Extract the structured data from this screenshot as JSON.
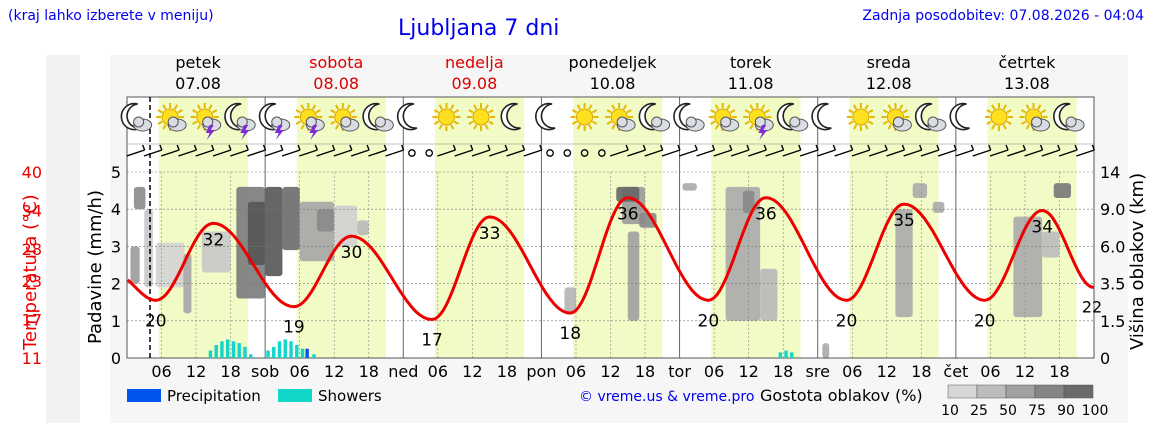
{
  "header": {
    "left_note": "(kraj lahko izberete v meniju)",
    "title": "Ljubljana 7 dni",
    "updated": "Zadnja posodobitev: 07.08.2026 - 04:04"
  },
  "days": [
    {
      "name": "petek",
      "date": "07.08",
      "weekend": false,
      "abbr": "",
      "icons": [
        "moon-cloud",
        "sun-cloud",
        "sun-storm",
        "moon-storm"
      ]
    },
    {
      "name": "sobota",
      "date": "08.08",
      "weekend": true,
      "abbr": "sob",
      "icons": [
        "moon-storm",
        "sun-storm",
        "sun-cloud",
        "moon-cloud"
      ]
    },
    {
      "name": "nedelja",
      "date": "09.08",
      "weekend": true,
      "abbr": "ned",
      "icons": [
        "moon",
        "sun",
        "sun",
        "moon"
      ]
    },
    {
      "name": "ponedeljek",
      "date": "10.08",
      "weekend": false,
      "abbr": "pon",
      "icons": [
        "moon",
        "sun",
        "sun-cloud",
        "moon-cloud"
      ]
    },
    {
      "name": "torek",
      "date": "11.08",
      "weekend": false,
      "abbr": "tor",
      "icons": [
        "moon-cloud",
        "sun-cloud",
        "sun-storm",
        "moon-cloud"
      ]
    },
    {
      "name": "sreda",
      "date": "12.08",
      "weekend": false,
      "abbr": "sre",
      "icons": [
        "moon",
        "sun",
        "sun-cloud",
        "moon-cloud"
      ]
    },
    {
      "name": "četrtek",
      "date": "13.08",
      "weekend": false,
      "abbr": "čet",
      "icons": [
        "moon",
        "sun",
        "sun-cloud",
        "moon-cloud"
      ]
    }
  ],
  "chart_data": {
    "type": "line",
    "x_hours": [
      6,
      12,
      18
    ],
    "y_left_precip": {
      "label": "Padavine (mm/h)",
      "ticks": [
        0,
        1,
        2,
        3,
        4,
        5
      ],
      "range": [
        0,
        5
      ]
    },
    "y_left_temp": {
      "label": "Temperatura (°C)",
      "ticks": [
        11,
        17,
        23,
        28,
        34,
        40
      ],
      "range": [
        11,
        40
      ]
    },
    "y_right_cloud": {
      "label": "Višina oblakov (km)",
      "ticks": [
        "0",
        "1.5",
        "3.5",
        "6.0",
        "9.0",
        "14"
      ]
    },
    "temperature_series": {
      "name": "temperature",
      "min_labels": [
        20,
        19,
        17,
        18,
        20,
        20,
        20
      ],
      "max_labels": [
        32,
        30,
        33,
        36,
        36,
        35,
        34
      ],
      "end_label": 22
    },
    "legend": [
      {
        "name": "Precipitation",
        "color": "#0055ee"
      },
      {
        "name": "Showers",
        "color": "#11d6c8"
      }
    ],
    "cloud_legend": {
      "title": "Gostota oblakov (%)",
      "levels": [
        "10",
        "25",
        "50",
        "75",
        "90",
        "100"
      ]
    },
    "colors": {
      "temp": "#ee0000",
      "weekend": "#dd0000",
      "daylight": "#f1fbc6",
      "text_blue": "#0000ee"
    }
  },
  "footer": {
    "copyright": "© vreme.us & vreme.pro"
  }
}
